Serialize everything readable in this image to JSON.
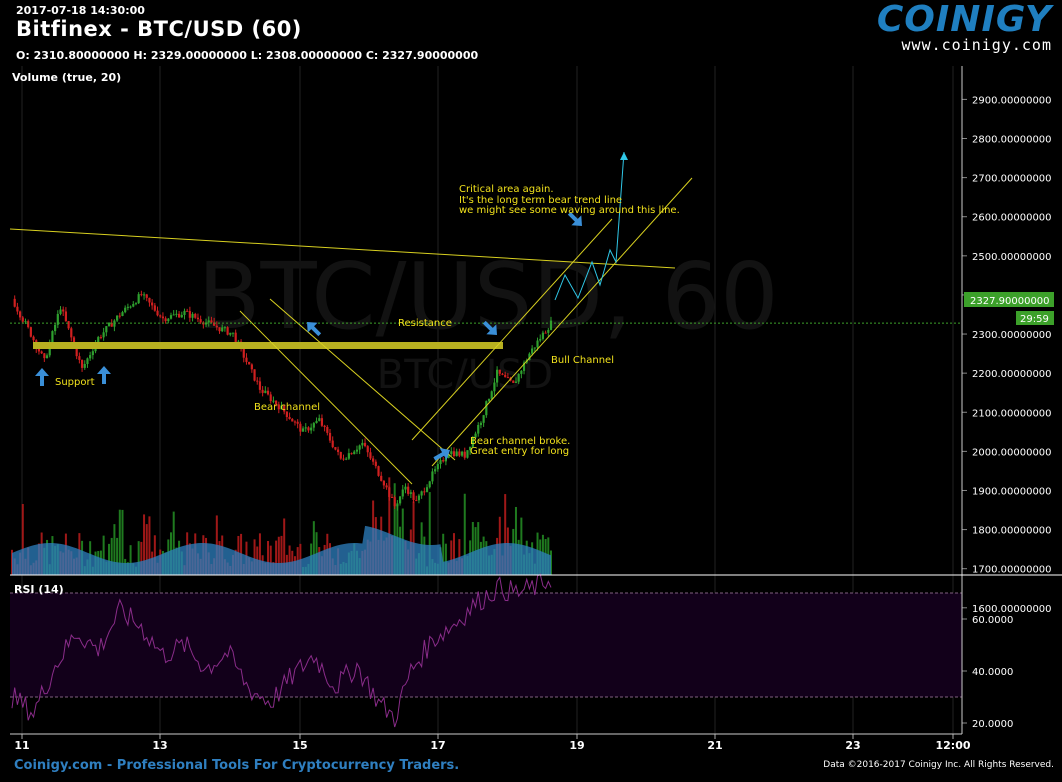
{
  "header": {
    "timestamp": "2017-07-18 14:30:00",
    "title": "Bitfinex - BTC/USD (60)",
    "ohlc": "O: 2310.80000000 H: 2329.00000000 L: 2308.00000000 C: 2327.90000000",
    "volume_title": "Volume (true, 20)"
  },
  "logo": {
    "brand": "COINIGY",
    "url": "www.coinigy.com"
  },
  "watermark": {
    "big": "BTC/USD, 60",
    "small": "BTC/USD"
  },
  "footer": {
    "left": "Coinigy.com - Professional Tools For Cryptocurrency Traders.",
    "right": "Data ©2016-2017 Coinigy Inc. All Rights Reserved."
  },
  "colors": {
    "bull": "#2ea02e",
    "bear": "#d02020",
    "trendline": "#d8d020",
    "annotation": "#f2e21c",
    "arrow": "#3a8fd8",
    "channel_arrow": "#30c8e8",
    "price_tag": "#3ca02a",
    "rsi_line": "#7a2a7a",
    "rsi_band": "#14001a",
    "volume_area": "#2d80c0"
  },
  "chart_data": [
    {
      "type": "candlestick",
      "title": "Bitfinex - BTC/USD (60)",
      "x_ticks": [
        "11",
        "13",
        "15",
        "17",
        "19",
        "21",
        "23",
        "12:00"
      ],
      "y_ticks": [
        "1600.00000000",
        "1700.00000000",
        "1800.00000000",
        "1900.00000000",
        "2000.00000000",
        "2100.00000000",
        "2200.00000000",
        "2300.00000000",
        "2400.00000000",
        "2500.00000000",
        "2600.00000000",
        "2700.00000000",
        "2800.00000000",
        "2900.00000000"
      ],
      "ylim": [
        1550,
        2960
      ],
      "last_price": "2327.90000000",
      "countdown": "29:59",
      "key_closes": [
        {
          "x": 0,
          "y": 2390
        },
        {
          "x": 7,
          "y": 2300
        },
        {
          "x": 12,
          "y": 2230
        },
        {
          "x": 18,
          "y": 2370
        },
        {
          "x": 26,
          "y": 2210
        },
        {
          "x": 32,
          "y": 2290
        },
        {
          "x": 40,
          "y": 2350
        },
        {
          "x": 48,
          "y": 2400
        },
        {
          "x": 56,
          "y": 2340
        },
        {
          "x": 64,
          "y": 2355
        },
        {
          "x": 72,
          "y": 2330
        },
        {
          "x": 82,
          "y": 2300
        },
        {
          "x": 92,
          "y": 2160
        },
        {
          "x": 100,
          "y": 2110
        },
        {
          "x": 108,
          "y": 2050
        },
        {
          "x": 114,
          "y": 2080
        },
        {
          "x": 122,
          "y": 1980
        },
        {
          "x": 130,
          "y": 2020
        },
        {
          "x": 138,
          "y": 1920
        },
        {
          "x": 142,
          "y": 1860
        },
        {
          "x": 146,
          "y": 1910
        },
        {
          "x": 150,
          "y": 1870
        },
        {
          "x": 156,
          "y": 1940
        },
        {
          "x": 162,
          "y": 2000
        },
        {
          "x": 168,
          "y": 1990
        },
        {
          "x": 174,
          "y": 2080
        },
        {
          "x": 180,
          "y": 2200
        },
        {
          "x": 186,
          "y": 2170
        },
        {
          "x": 192,
          "y": 2250
        },
        {
          "x": 198,
          "y": 2310
        },
        {
          "x": 200,
          "y": 2327.9
        }
      ],
      "annotations": [
        {
          "text": "Support"
        },
        {
          "text": "Bear channel"
        },
        {
          "text": "Resistance"
        },
        {
          "text": "Bull Channel"
        },
        {
          "text": "Bear channel broke."
        },
        {
          "text": "Great entry for long"
        },
        {
          "text": "Critical area again."
        },
        {
          "text": "It's the long term bear trend line"
        },
        {
          "text": "we might see some waving around this line."
        }
      ]
    },
    {
      "type": "bar",
      "title": "Volume (true, 20)",
      "description_note": "volume bars with moving average area beneath price"
    },
    {
      "type": "line",
      "title": "RSI (14)",
      "y_ticks": [
        "20.0000",
        "40.0000",
        "60.0000"
      ],
      "ylim": [
        15,
        78
      ],
      "bands": [
        30,
        70
      ],
      "key_values": [
        {
          "x": 0,
          "y": 30
        },
        {
          "x": 8,
          "y": 24
        },
        {
          "x": 16,
          "y": 42
        },
        {
          "x": 24,
          "y": 55
        },
        {
          "x": 32,
          "y": 48
        },
        {
          "x": 40,
          "y": 63
        },
        {
          "x": 48,
          "y": 57
        },
        {
          "x": 56,
          "y": 46
        },
        {
          "x": 64,
          "y": 50
        },
        {
          "x": 72,
          "y": 41
        },
        {
          "x": 80,
          "y": 47
        },
        {
          "x": 88,
          "y": 33
        },
        {
          "x": 96,
          "y": 28
        },
        {
          "x": 104,
          "y": 38
        },
        {
          "x": 112,
          "y": 46
        },
        {
          "x": 120,
          "y": 34
        },
        {
          "x": 128,
          "y": 42
        },
        {
          "x": 136,
          "y": 28
        },
        {
          "x": 142,
          "y": 22
        },
        {
          "x": 148,
          "y": 40
        },
        {
          "x": 156,
          "y": 52
        },
        {
          "x": 164,
          "y": 58
        },
        {
          "x": 172,
          "y": 66
        },
        {
          "x": 180,
          "y": 72
        },
        {
          "x": 188,
          "y": 70
        },
        {
          "x": 196,
          "y": 73
        },
        {
          "x": 200,
          "y": 76
        }
      ]
    }
  ]
}
